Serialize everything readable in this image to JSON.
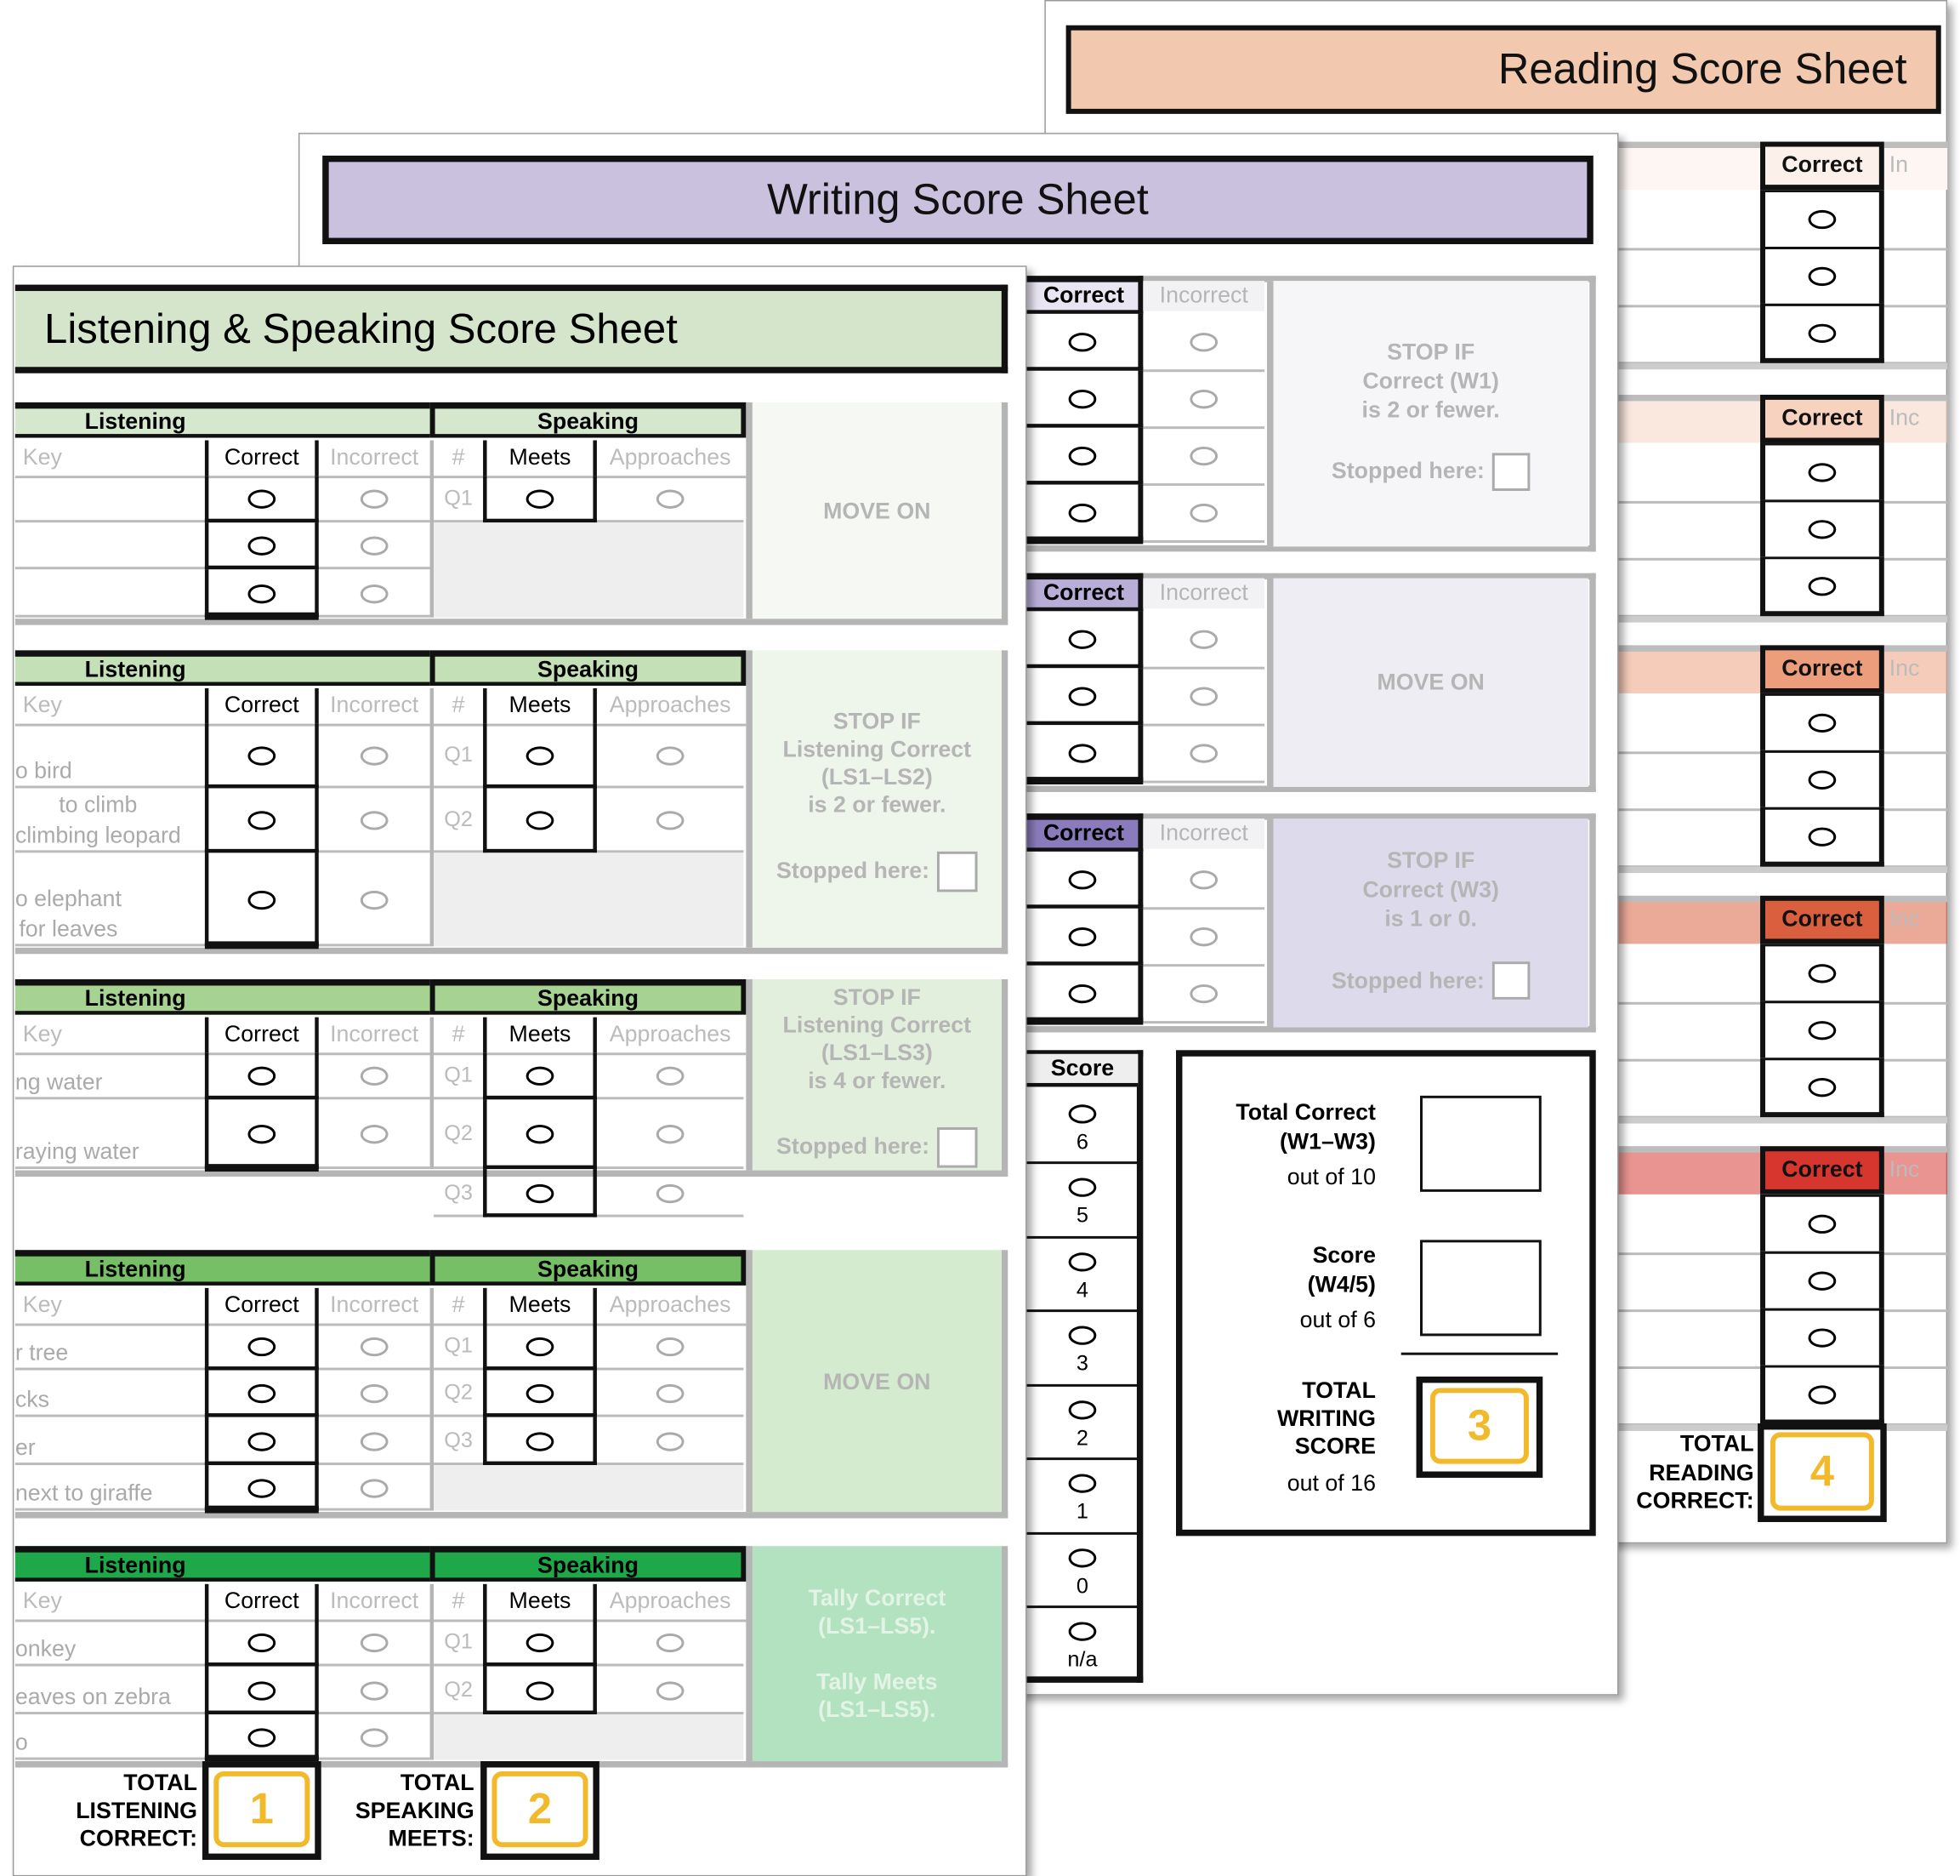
{
  "reading": {
    "title": "Reading Score Sheet",
    "column_correct": "Correct",
    "incorrect_partial": [
      "In",
      "Inc",
      "Inc",
      "Inc",
      "Inc"
    ],
    "total_label": "TOTAL READING CORRECT:",
    "total_badge": "4",
    "colors": [
      "#fbf0ea",
      "#f6d2bf",
      "#ec9e7c",
      "#d95f3e",
      "#d6362e"
    ]
  },
  "writing": {
    "title": "Writing Score Sheet",
    "column_correct": "Correct",
    "column_incorrect": "Incorrect",
    "sections": [
      {
        "info": [
          "STOP IF",
          "Correct (W1)",
          "is 2 or fewer."
        ],
        "stopped": "Stopped here:"
      },
      {
        "info": [
          "MOVE ON"
        ]
      },
      {
        "info": [
          "STOP IF",
          "Correct (W3)",
          "is 1 or 0."
        ],
        "stopped": "Stopped here:"
      }
    ],
    "score": {
      "header": "Score",
      "values": [
        "6",
        "5",
        "4",
        "3",
        "2",
        "1",
        "0",
        "n/a"
      ]
    },
    "totals": {
      "total_correct": "Total Correct",
      "range1": "(W1–W3)",
      "out1": "out of 10",
      "score": "Score",
      "range2": "(W4/5)",
      "out2": "out of 6",
      "total": "TOTAL WRITING SCORE",
      "out3": "out of 16",
      "badge": "3"
    },
    "colors": [
      "#e9e5f2",
      "#b9aed8",
      "#8a7cbc"
    ]
  },
  "listening_speaking": {
    "title": "Listening & Speaking Score Sheet",
    "listening": "Listening",
    "speaking": "Speaking",
    "key": "Key",
    "correct": "Correct",
    "incorrect": "Incorrect",
    "number": "#",
    "meets": "Meets",
    "approaches": "Approaches",
    "sections": [
      {
        "keys": [
          "",
          "",
          ""
        ],
        "questions": [
          "Q1"
        ],
        "info": [
          "MOVE ON"
        ]
      },
      {
        "keys": [
          "o bird",
          "to climb\nclimbing leopard",
          "o elephant\nfor leaves"
        ],
        "questions": [
          "Q1",
          "Q2"
        ],
        "info": [
          "STOP IF",
          "Listening Correct",
          "(LS1–LS2)",
          "is 2 or fewer."
        ],
        "stopped": "Stopped here:"
      },
      {
        "keys": [
          "ng water",
          "raying water"
        ],
        "questions": [
          "Q1",
          "Q2",
          "Q3"
        ],
        "info": [
          "STOP IF",
          "Listening Correct",
          "(LS1–LS3)",
          "is 4 or fewer."
        ],
        "stopped": "Stopped here:"
      },
      {
        "keys": [
          "r tree",
          "cks",
          "er",
          "next to giraffe"
        ],
        "questions": [
          "Q1",
          "Q2",
          "Q3"
        ],
        "info": [
          "MOVE ON"
        ]
      },
      {
        "keys": [
          "onkey",
          "eaves on zebra",
          "o"
        ],
        "questions": [
          "Q1",
          "Q2"
        ],
        "info": [
          "Tally Correct",
          "(LS1–LS5).",
          "",
          "Tally Meets",
          "(LS1–LS5)."
        ]
      }
    ],
    "total_listening_label": "TOTAL LISTENING CORRECT:",
    "total_listening_badge": "1",
    "total_speaking_label": "TOTAL SPEAKING MEETS:",
    "total_speaking_badge": "2",
    "colors": {
      "title_bg": "#d4e5cc",
      "headers": [
        "#d5e8cd",
        "#c4e0b6",
        "#a6d391",
        "#76bf66",
        "#1ea84a"
      ],
      "info_bg": [
        "#f5f8f3",
        "#eef5ea",
        "#e3efdd",
        "#d5ebcf",
        "#b3e2c0"
      ]
    }
  }
}
